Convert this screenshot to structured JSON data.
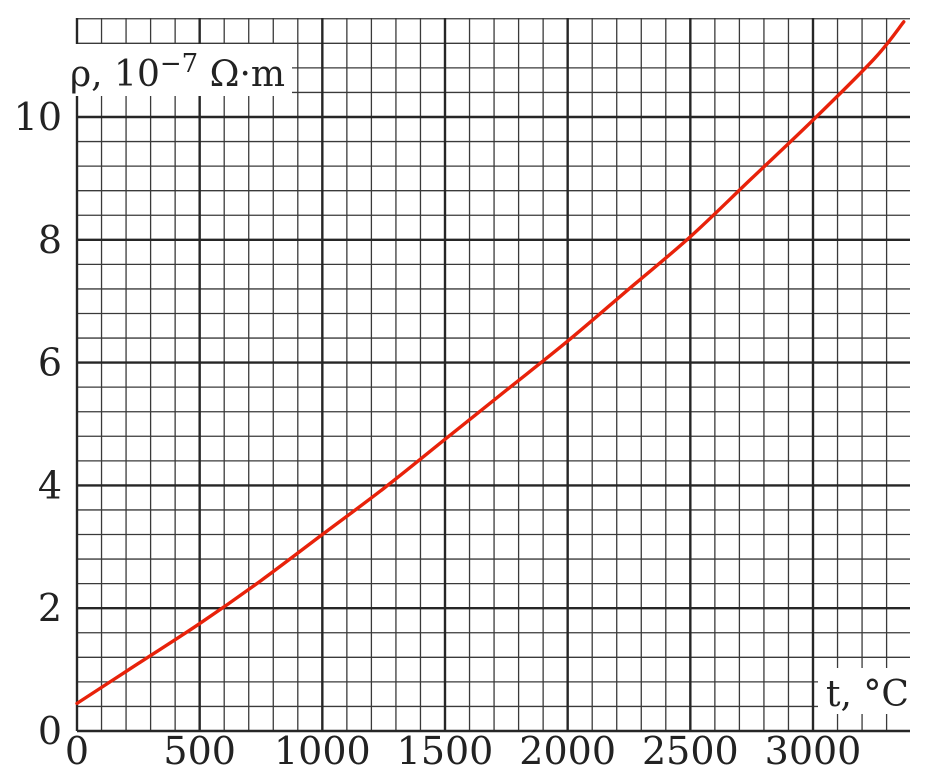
{
  "chart_data": {
    "type": "line",
    "title": "",
    "xlabel": "t, °C",
    "ylabel_prefix": "ρ, 10",
    "ylabel_exponent": "−7",
    "ylabel_unit": " Ω·m",
    "xlim": [
      0,
      3400
    ],
    "ylim": [
      0,
      11.6
    ],
    "x_ticks": [
      0,
      500,
      1000,
      1500,
      2000,
      2500,
      3000
    ],
    "x_tick_labels": [
      "0",
      "500",
      "1000",
      "1500",
      "2000",
      "2500",
      "3000"
    ],
    "y_ticks": [
      0,
      2,
      4,
      6,
      8,
      10
    ],
    "y_tick_labels": [
      "0",
      "2",
      "4",
      "6",
      "8",
      "10"
    ],
    "x_minor_step": 100,
    "y_minor_step": 0.4,
    "grid": true,
    "series": [
      {
        "name": "ρ(t)",
        "color": "#e8220a",
        "x": [
          0,
          250,
          500,
          750,
          1000,
          1250,
          1500,
          1750,
          2000,
          2250,
          2500,
          2750,
          3000,
          3250,
          3370
        ],
        "y": [
          0.45,
          1.1,
          1.75,
          2.45,
          3.2,
          3.95,
          4.75,
          5.55,
          6.35,
          7.2,
          8.05,
          9.0,
          9.95,
          10.95,
          11.55
        ]
      }
    ]
  }
}
